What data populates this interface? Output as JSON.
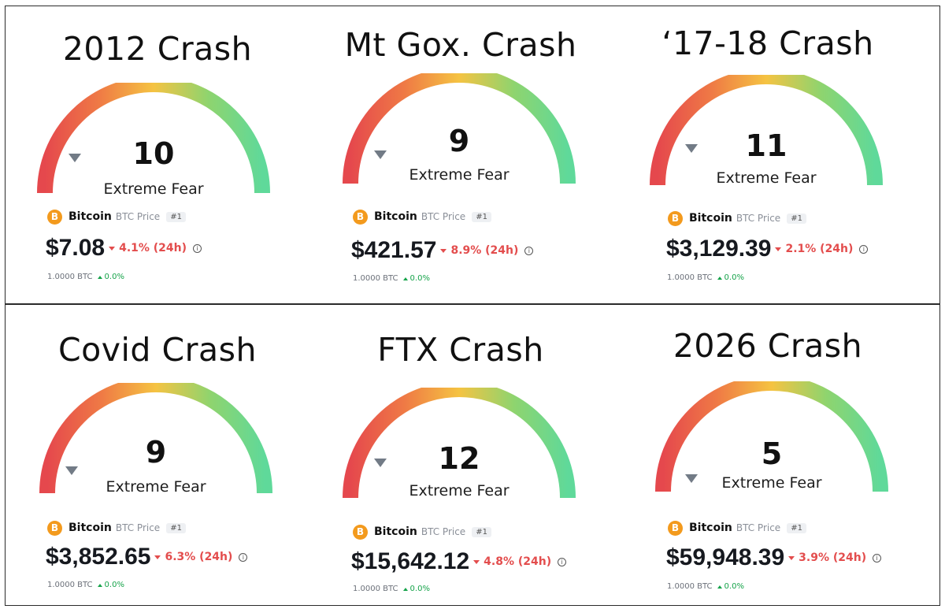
{
  "panels": [
    {
      "title": "2012 Crash",
      "score": "10",
      "sentiment": "Extreme Fear",
      "coin_name": "Bitcoin",
      "coin_symbol": "BTC Price",
      "rank": "#1",
      "price": "$7.08",
      "change": "4.1% (24h)",
      "btc_amount": "1.0000 BTC",
      "btc_change": "0.0%"
    },
    {
      "title": "Mt Gox. Crash",
      "score": "9",
      "sentiment": "Extreme Fear",
      "coin_name": "Bitcoin",
      "coin_symbol": "BTC Price",
      "rank": "#1",
      "price": "$421.57",
      "change": "8.9% (24h)",
      "btc_amount": "1.0000 BTC",
      "btc_change": "0.0%"
    },
    {
      "title": "‘17-18 Crash",
      "score": "11",
      "sentiment": "Extreme Fear",
      "coin_name": "Bitcoin",
      "coin_symbol": "BTC Price",
      "rank": "#1",
      "price": "$3,129.39",
      "change": "2.1% (24h)",
      "btc_amount": "1.0000 BTC",
      "btc_change": "0.0%"
    },
    {
      "title": "Covid Crash",
      "score": "9",
      "sentiment": "Extreme Fear",
      "coin_name": "Bitcoin",
      "coin_symbol": "BTC Price",
      "rank": "#1",
      "price": "$3,852.65",
      "change": "6.3% (24h)",
      "btc_amount": "1.0000 BTC",
      "btc_change": "0.0%"
    },
    {
      "title": "FTX Crash",
      "score": "12",
      "sentiment": "Extreme Fear",
      "coin_name": "Bitcoin",
      "coin_symbol": "BTC Price",
      "rank": "#1",
      "price": "$15,642.12",
      "change": "4.8% (24h)",
      "btc_amount": "1.0000 BTC",
      "btc_change": "0.0%"
    },
    {
      "title": "2026 Crash",
      "score": "5",
      "sentiment": "Extreme Fear",
      "coin_name": "Bitcoin",
      "coin_symbol": "BTC Price",
      "rank": "#1",
      "price": "$59,948.39",
      "change": "3.9% (24h)",
      "btc_amount": "1.0000 BTC",
      "btc_change": "0.0%"
    }
  ],
  "coin_icon_glyph": "B",
  "colors": {
    "fear": "#e5484d",
    "neutral": "#f5c342",
    "greed": "#5fd99a",
    "pointer": "#727b86",
    "negative": "#e34d4d",
    "positive": "#16a34a",
    "coin": "#f39a1d"
  }
}
